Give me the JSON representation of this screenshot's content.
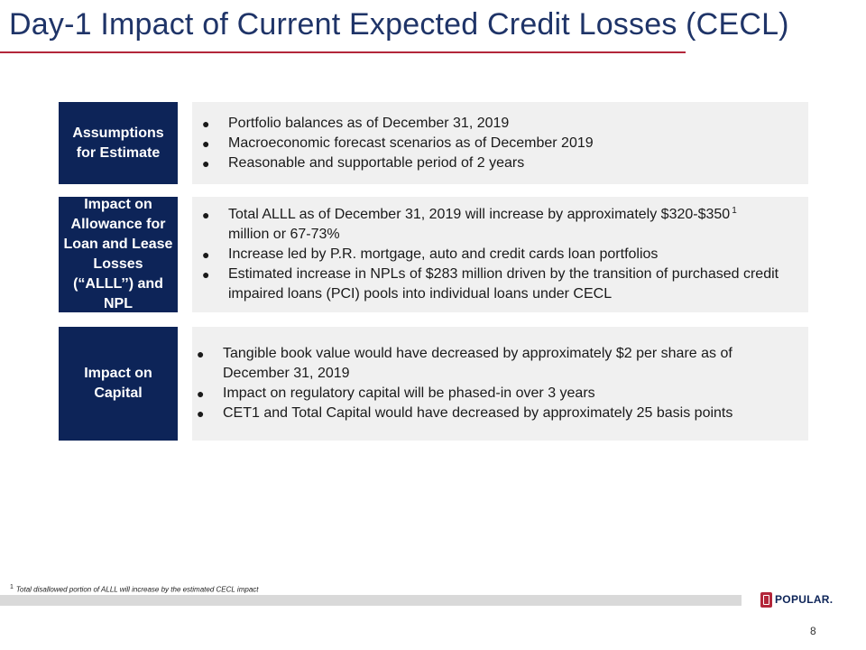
{
  "slide": {
    "title": "Day-1 Impact of Current Expected Credit Losses (CECL)",
    "page_number": "8"
  },
  "sections": [
    {
      "label": "Assumptions for Estimate",
      "bullets": [
        "Portfolio balances as of December 31, 2019",
        "Macroeconomic forecast scenarios as of December 2019",
        "Reasonable and supportable period of 2 years"
      ]
    },
    {
      "label": "Impact on Allowance for Loan and Lease Losses (“ALLL’’) and NPL",
      "bullets": [
        "Total ALLL as of December 31, 2019 will increase by approximately $320-$350",
        "Increase led by P.R. mortgage, auto and credit cards loan portfolios",
        "Estimated increase in NPLs of $283 million driven by the transition of purchased credit impaired loans (PCI) pools into individual loans under CECL"
      ],
      "bullet1_continuation": "million or 67-73%",
      "footnote_marker": "1"
    },
    {
      "label": "Impact on Capital",
      "bullets": [
        "Tangible book value would have decreased by approximately $2 per share as of December 31, 2019",
        "Impact on regulatory capital will be phased-in over 3 years",
        "CET1 and Total Capital  would have decreased by approximately 25 basis points"
      ]
    }
  ],
  "footnote": {
    "marker": "1",
    "text": "Total disallowed portion of ALLL will increase by the estimated CECL impact"
  },
  "logo": {
    "text": "POPULAR",
    "trademark": "."
  },
  "colors": {
    "title": "#1f3468",
    "rule": "#b3263a",
    "label_bg": "#0d2458",
    "content_bg": "#f0f0f0",
    "footer_bar": "#d9d9d9"
  }
}
